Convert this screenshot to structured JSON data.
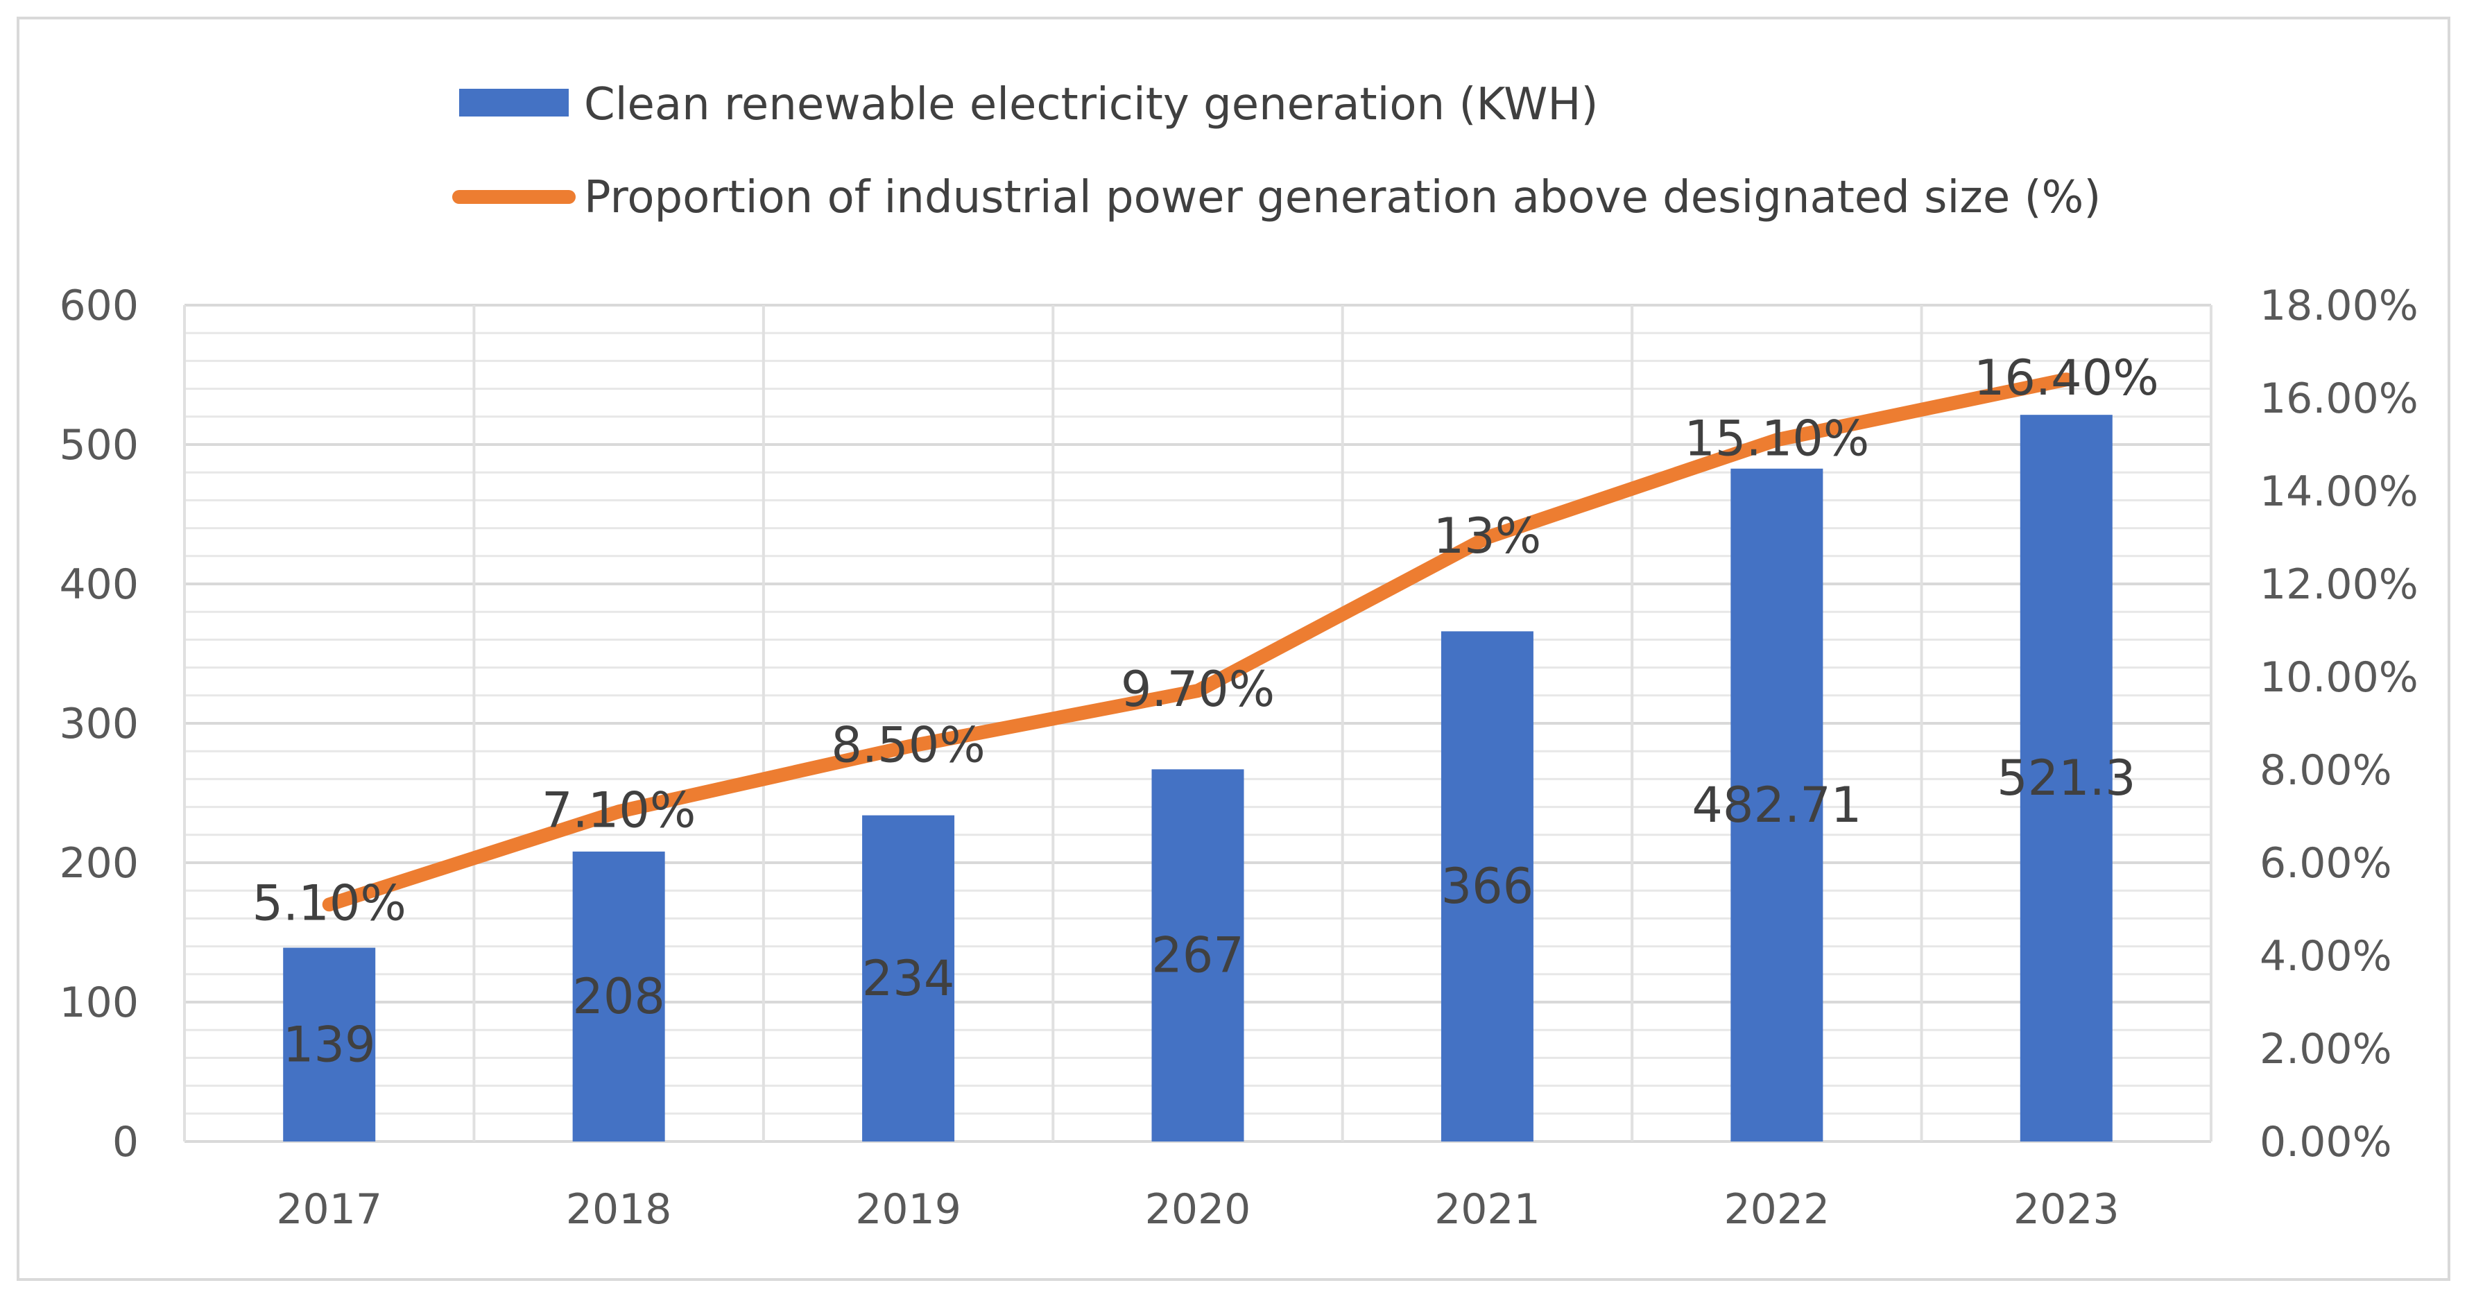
{
  "chart_data": {
    "type": "bar+line",
    "title": "",
    "categories": [
      "2017",
      "2018",
      "2019",
      "2020",
      "2021",
      "2022",
      "2023"
    ],
    "series": [
      {
        "name": "Clean renewable electricity generation (KWH)",
        "type": "bar",
        "axis": "left",
        "color": "#4472C4",
        "values": [
          139,
          208,
          234,
          267,
          366,
          482.71,
          521.3
        ],
        "labels": [
          "139",
          "208",
          "234",
          "267",
          "366",
          "482.71",
          "521.3"
        ]
      },
      {
        "name": "Proportion of industrial power generation above designated size (%)",
        "type": "line",
        "axis": "right",
        "color": "#ED7D31",
        "values": [
          5.1,
          7.1,
          8.5,
          9.7,
          13,
          15.1,
          16.4
        ],
        "labels": [
          "5.10%",
          "7.10%",
          "8.50%",
          "9.70%",
          "13%",
          "15.10%",
          "16.40%"
        ]
      }
    ],
    "left_axis": {
      "min": 0,
      "max": 600,
      "ticks": [
        "0",
        "100",
        "200",
        "300",
        "400",
        "500",
        "600"
      ]
    },
    "right_axis": {
      "min": 0,
      "max": 18,
      "ticks": [
        "0.00%",
        "2.00%",
        "4.00%",
        "6.00%",
        "8.00%",
        "10.00%",
        "12.00%",
        "14.00%",
        "16.00%",
        "18.00%"
      ]
    },
    "grid": true,
    "legend_position": "top"
  }
}
